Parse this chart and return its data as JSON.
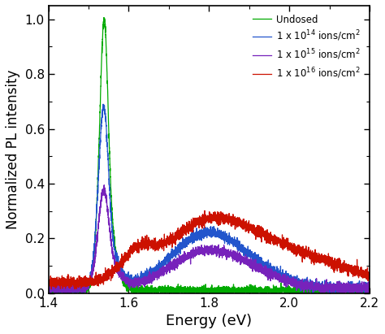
{
  "title": "",
  "xlabel": "Energy (eV)",
  "ylabel": "Normalized PL intensity",
  "xlim": [
    1.4,
    2.2
  ],
  "ylim": [
    0.0,
    1.05
  ],
  "yticks": [
    0.0,
    0.2,
    0.4,
    0.6,
    0.8,
    1.0
  ],
  "xticks": [
    1.4,
    1.6,
    1.8,
    2.0,
    2.2
  ],
  "colors": {
    "undosed": "#00aa00",
    "e14": "#2255cc",
    "e15": "#7722bb",
    "e16": "#cc1100"
  },
  "legend_labels": [
    "Undosed",
    "1 x 10$^{14}$ ions/cm$^2$",
    "1 x 10$^{15}$ ions/cm$^2$",
    "1 x 10$^{16}$ ions/cm$^2$"
  ],
  "background_color": "#ffffff",
  "noise_seed": 42
}
